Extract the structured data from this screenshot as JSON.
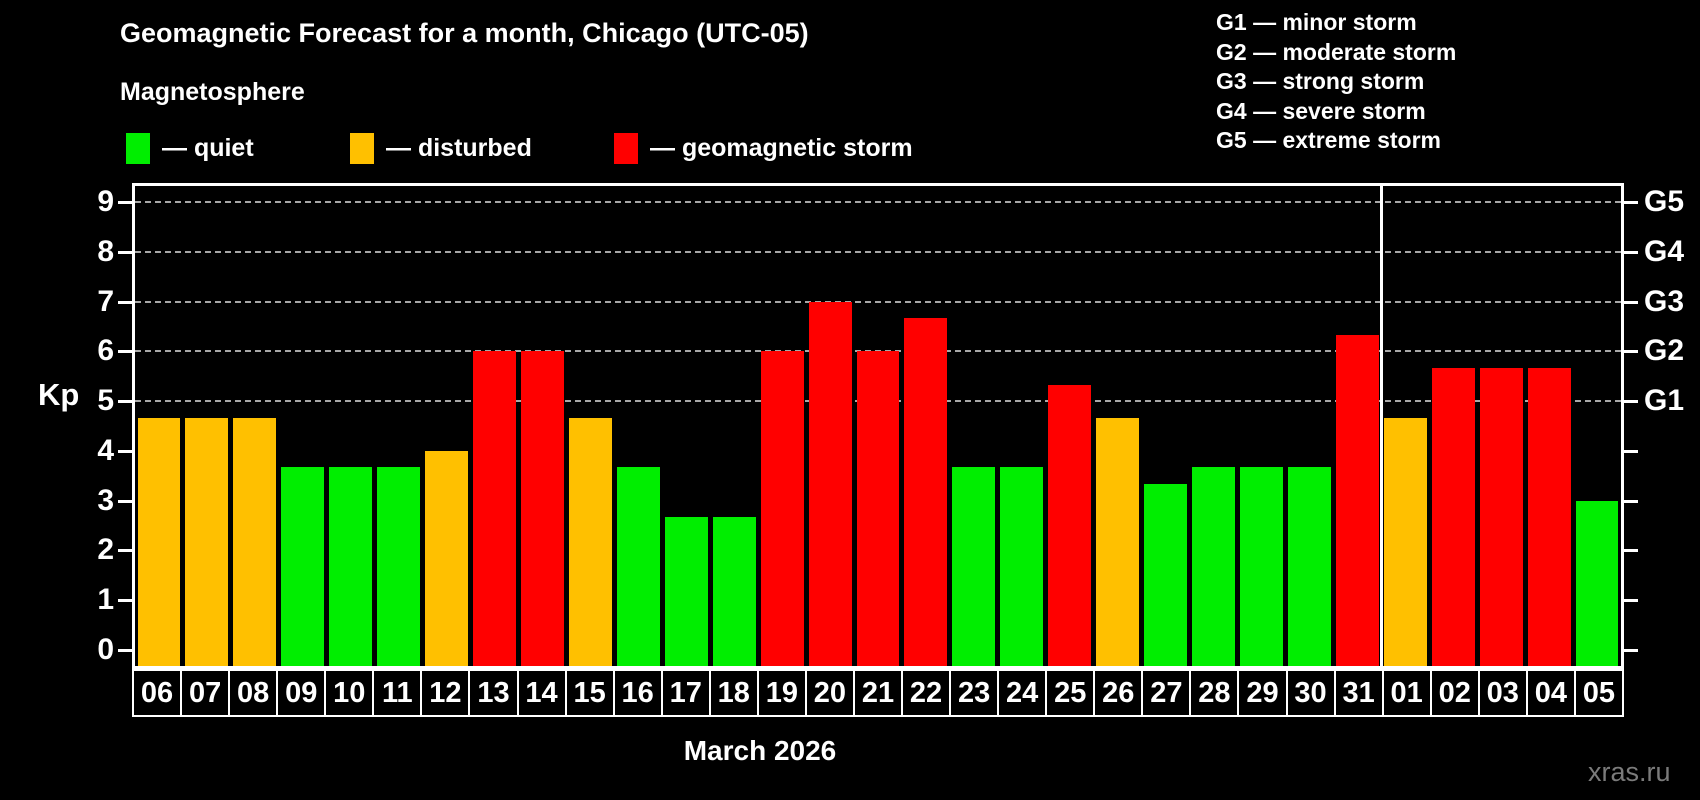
{
  "title": "Geomagnetic Forecast for a month, Chicago (UTC-05)",
  "subtitle": "Magnetosphere",
  "legend": {
    "items": [
      {
        "key": "quiet",
        "label": "— quiet"
      },
      {
        "key": "disturbed",
        "label": "— disturbed"
      },
      {
        "key": "storm",
        "label": "— geomagnetic storm"
      }
    ]
  },
  "g_scale_legend": [
    "G1 — minor storm",
    "G2 — moderate storm",
    "G3 — strong storm",
    "G4 — severe storm",
    "G5 — extreme storm"
  ],
  "watermark": "xras.ru",
  "colors": {
    "quiet": "#00ee00",
    "disturbed": "#ffc000",
    "storm": "#ff0000",
    "background": "#000000",
    "axis": "#ffffff",
    "grid": "#a8a8a8",
    "watermark": "#7b7b7b"
  },
  "chart_data": {
    "type": "bar",
    "title": "Geomagnetic Forecast for a month, Chicago (UTC-05)",
    "xlabel": "March 2026",
    "ylabel": "Kp",
    "ylim": [
      -0.35,
      9.4
    ],
    "yticks": [
      0,
      1,
      2,
      3,
      4,
      5,
      6,
      7,
      8,
      9
    ],
    "gridlines_at": [
      5,
      6,
      7,
      8,
      9
    ],
    "grid": "dashed, horizontal only",
    "legend_position": "top",
    "right_axis_labels": {
      "5": "G1",
      "6": "G2",
      "7": "G3",
      "8": "G4",
      "9": "G5"
    },
    "march_bar_count": 26,
    "categories": [
      "06",
      "07",
      "08",
      "09",
      "10",
      "11",
      "12",
      "13",
      "14",
      "15",
      "16",
      "17",
      "18",
      "19",
      "20",
      "21",
      "22",
      "23",
      "24",
      "25",
      "26",
      "27",
      "28",
      "29",
      "30",
      "31",
      "01",
      "02",
      "03",
      "04",
      "05"
    ],
    "values": [
      4.67,
      4.67,
      4.67,
      3.67,
      3.67,
      3.67,
      4.0,
      6.0,
      6.0,
      4.67,
      3.67,
      2.67,
      2.67,
      6.0,
      7.0,
      6.0,
      6.67,
      3.67,
      3.67,
      5.33,
      4.67,
      3.33,
      3.67,
      3.67,
      3.67,
      6.33,
      4.67,
      5.67,
      5.67,
      5.67,
      3.0
    ],
    "statuses": [
      "disturbed",
      "disturbed",
      "disturbed",
      "quiet",
      "quiet",
      "quiet",
      "disturbed",
      "storm",
      "storm",
      "disturbed",
      "quiet",
      "quiet",
      "quiet",
      "storm",
      "storm",
      "storm",
      "storm",
      "quiet",
      "quiet",
      "storm",
      "disturbed",
      "quiet",
      "quiet",
      "quiet",
      "quiet",
      "storm",
      "disturbed",
      "storm",
      "storm",
      "storm",
      "quiet"
    ]
  }
}
